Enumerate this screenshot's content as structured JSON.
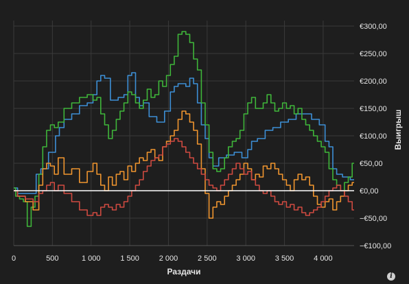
{
  "chart_data": {
    "type": "line",
    "title": "",
    "xlabel": "Раздачи",
    "ylabel": "Выигрыш",
    "xlim": [
      0,
      4400
    ],
    "ylim": [
      -100,
      310
    ],
    "x_ticks": [
      0,
      500,
      1000,
      1500,
      2000,
      2500,
      3000,
      3500,
      4000
    ],
    "x_tick_labels": [
      "0",
      "500",
      "1 000",
      "1 500",
      "2 000",
      "2 500",
      "3 000",
      "3 500",
      "4 000"
    ],
    "y_ticks": [
      -100,
      -50,
      0,
      50,
      100,
      150,
      200,
      250,
      300
    ],
    "y_tick_labels": [
      "−€100,00",
      "−€50,00",
      "€0,00",
      "€50,00",
      "€100,00",
      "€150,00",
      "€200,00",
      "€250,00",
      "€300,00"
    ],
    "grid": true,
    "zero_line_color": "#ffffff",
    "series": [
      {
        "color": "#3d8fd6",
        "x": [
          0,
          100,
          200,
          280,
          300,
          400,
          500,
          580,
          600,
          700,
          800,
          900,
          1000,
          1050,
          1100,
          1150,
          1200,
          1300,
          1400,
          1450,
          1500,
          1550,
          1600,
          1650,
          1700,
          1800,
          1900,
          2000,
          2050,
          2100,
          2150,
          2200,
          2250,
          2300,
          2350,
          2400,
          2450,
          2500,
          2550,
          2600,
          2700,
          2800,
          2900,
          3000,
          3050,
          3100,
          3200,
          3300,
          3400,
          3500,
          3600,
          3700,
          3800,
          3900,
          4000,
          4050,
          4100,
          4150,
          4200,
          4300,
          4400
        ],
        "y": [
          5,
          -5,
          -5,
          -5,
          30,
          40,
          70,
          100,
          115,
          130,
          140,
          155,
          160,
          175,
          200,
          210,
          205,
          165,
          170,
          175,
          210,
          215,
          170,
          155,
          160,
          135,
          125,
          145,
          180,
          190,
          195,
          195,
          190,
          205,
          195,
          160,
          120,
          95,
          60,
          45,
          60,
          65,
          70,
          60,
          75,
          90,
          95,
          110,
          115,
          125,
          130,
          140,
          140,
          130,
          120,
          90,
          80,
          40,
          30,
          25,
          20
        ]
      },
      {
        "color": "#3fb63a",
        "x": [
          0,
          50,
          100,
          150,
          200,
          250,
          300,
          350,
          400,
          450,
          500,
          550,
          600,
          700,
          800,
          900,
          1000,
          1050,
          1100,
          1150,
          1200,
          1250,
          1300,
          1350,
          1400,
          1450,
          1500,
          1550,
          1600,
          1650,
          1700,
          1750,
          1800,
          1850,
          1900,
          1950,
          2000,
          2050,
          2100,
          2150,
          2200,
          2250,
          2300,
          2350,
          2400,
          2450,
          2500,
          2550,
          2600,
          2650,
          2700,
          2750,
          2800,
          2850,
          2900,
          2950,
          3000,
          3050,
          3100,
          3150,
          3200,
          3250,
          3300,
          3350,
          3400,
          3450,
          3500,
          3550,
          3600,
          3650,
          3700,
          3750,
          3800,
          3850,
          3900,
          3950,
          4000,
          4050,
          4100,
          4150,
          4200,
          4250,
          4300,
          4350,
          4400
        ],
        "y": [
          5,
          -10,
          -15,
          -20,
          -65,
          -30,
          -10,
          30,
          80,
          110,
          120,
          115,
          125,
          150,
          160,
          170,
          175,
          165,
          170,
          140,
          120,
          95,
          110,
          130,
          145,
          160,
          180,
          175,
          160,
          150,
          165,
          185,
          170,
          175,
          200,
          190,
          210,
          230,
          245,
          285,
          290,
          285,
          270,
          240,
          220,
          160,
          120,
          70,
          40,
          35,
          40,
          60,
          80,
          90,
          95,
          110,
          140,
          160,
          170,
          150,
          150,
          160,
          175,
          160,
          145,
          150,
          160,
          150,
          155,
          140,
          150,
          130,
          120,
          110,
          100,
          90,
          80,
          70,
          40,
          20,
          10,
          0,
          15,
          25,
          50
        ]
      },
      {
        "color": "#f0952f",
        "x": [
          0,
          100,
          200,
          300,
          350,
          400,
          450,
          500,
          550,
          600,
          700,
          800,
          900,
          1000,
          1050,
          1100,
          1150,
          1200,
          1250,
          1300,
          1350,
          1400,
          1450,
          1500,
          1550,
          1600,
          1650,
          1700,
          1750,
          1800,
          1850,
          1900,
          1950,
          2000,
          2050,
          2100,
          2150,
          2200,
          2250,
          2300,
          2350,
          2400,
          2450,
          2500,
          2550,
          2600,
          2650,
          2700,
          2750,
          2800,
          2850,
          2900,
          2950,
          3000,
          3050,
          3100,
          3150,
          3200,
          3250,
          3300,
          3350,
          3400,
          3450,
          3500,
          3550,
          3600,
          3650,
          3700,
          3750,
          3800,
          3850,
          3900,
          3950,
          4000,
          4050,
          4100,
          4150,
          4200,
          4250,
          4300,
          4350,
          4400
        ],
        "y": [
          0,
          -10,
          -20,
          -35,
          10,
          40,
          50,
          45,
          30,
          60,
          30,
          40,
          15,
          35,
          50,
          30,
          10,
          0,
          25,
          10,
          30,
          35,
          20,
          45,
          35,
          50,
          60,
          55,
          70,
          75,
          60,
          55,
          80,
          90,
          100,
          110,
          130,
          145,
          140,
          125,
          110,
          85,
          40,
          -5,
          -50,
          -30,
          -20,
          -25,
          -10,
          0,
          10,
          20,
          30,
          50,
          40,
          20,
          30,
          25,
          45,
          40,
          50,
          40,
          30,
          20,
          10,
          0,
          20,
          30,
          20,
          25,
          10,
          -10,
          -25,
          -30,
          -20,
          -15,
          -35,
          -20,
          -10,
          0,
          10,
          15
        ]
      },
      {
        "color": "#cf4a40",
        "x": [
          0,
          100,
          200,
          300,
          350,
          400,
          450,
          500,
          550,
          600,
          700,
          800,
          900,
          1000,
          1050,
          1100,
          1150,
          1200,
          1250,
          1300,
          1350,
          1400,
          1450,
          1500,
          1550,
          1600,
          1650,
          1700,
          1750,
          1800,
          1850,
          1900,
          1950,
          2000,
          2050,
          2100,
          2150,
          2200,
          2250,
          2300,
          2350,
          2400,
          2450,
          2500,
          2550,
          2600,
          2650,
          2700,
          2750,
          2800,
          2850,
          2900,
          2950,
          3000,
          3050,
          3100,
          3150,
          3200,
          3250,
          3300,
          3350,
          3400,
          3450,
          3500,
          3550,
          3600,
          3650,
          3700,
          3750,
          3800,
          3850,
          3900,
          3950,
          4000,
          4050,
          4100,
          4150,
          4200,
          4250,
          4300,
          4350,
          4400
        ],
        "y": [
          0,
          -10,
          -15,
          -20,
          -5,
          0,
          10,
          15,
          0,
          10,
          -5,
          -20,
          -35,
          -45,
          -40,
          -45,
          -30,
          -25,
          -30,
          -35,
          -25,
          -30,
          -20,
          -10,
          0,
          10,
          20,
          35,
          45,
          55,
          60,
          65,
          80,
          85,
          90,
          95,
          90,
          80,
          70,
          60,
          50,
          40,
          30,
          20,
          10,
          5,
          0,
          10,
          20,
          30,
          40,
          50,
          40,
          30,
          35,
          20,
          10,
          0,
          -5,
          0,
          -10,
          -20,
          -25,
          -20,
          -30,
          -25,
          -35,
          -30,
          -40,
          -45,
          -40,
          -35,
          -30,
          -20,
          -10,
          0,
          5,
          10,
          0,
          -10,
          -20,
          -35
        ]
      }
    ]
  }
}
